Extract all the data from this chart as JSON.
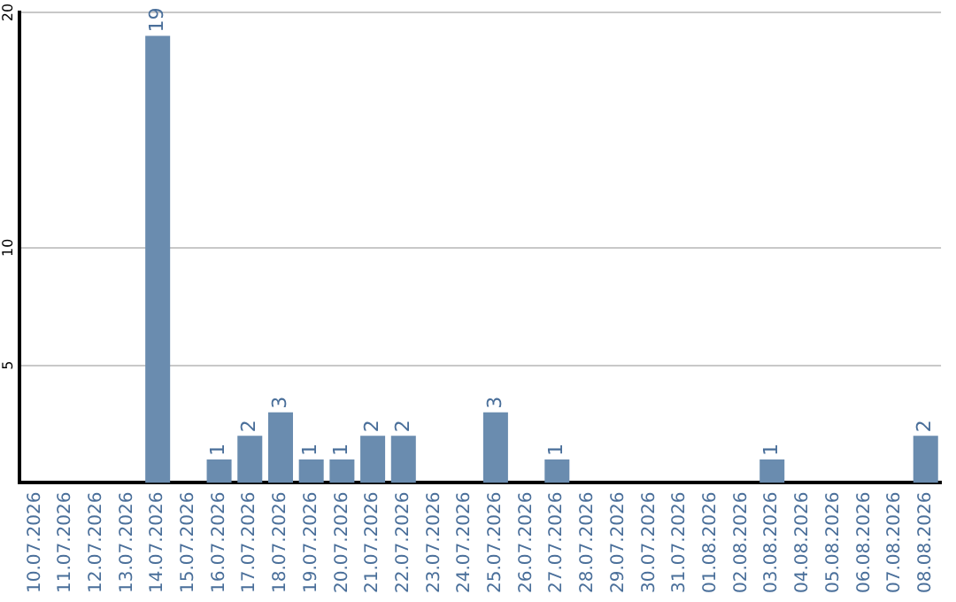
{
  "chart_data": {
    "type": "bar",
    "categories": [
      "10.07.2026",
      "11.07.2026",
      "12.07.2026",
      "13.07.2026",
      "14.07.2026",
      "15.07.2026",
      "16.07.2026",
      "17.07.2026",
      "18.07.2026",
      "19.07.2026",
      "20.07.2026",
      "21.07.2026",
      "22.07.2026",
      "23.07.2026",
      "24.07.2026",
      "25.07.2026",
      "26.07.2026",
      "27.07.2026",
      "28.07.2026",
      "29.07.2026",
      "30.07.2026",
      "31.07.2026",
      "01.08.2026",
      "02.08.2026",
      "03.08.2026",
      "04.08.2026",
      "05.08.2026",
      "06.08.2026",
      "07.08.2026",
      "08.08.2026"
    ],
    "values": [
      0,
      0,
      0,
      0,
      19,
      0,
      1,
      2,
      3,
      1,
      1,
      2,
      2,
      0,
      0,
      3,
      0,
      1,
      0,
      0,
      0,
      0,
      0,
      0,
      1,
      0,
      0,
      0,
      0,
      2
    ],
    "value_labels": [
      null,
      null,
      null,
      null,
      "19",
      null,
      "1",
      "2",
      "3",
      "1",
      "1",
      "2",
      "2",
      null,
      null,
      "3",
      null,
      "1",
      null,
      null,
      null,
      null,
      null,
      null,
      "1",
      null,
      null,
      null,
      null,
      "2"
    ],
    "color": "#6a8caf",
    "ylim": [
      0,
      20
    ],
    "yticks": [
      5,
      10,
      20
    ],
    "grid": "y",
    "legend": false
  }
}
